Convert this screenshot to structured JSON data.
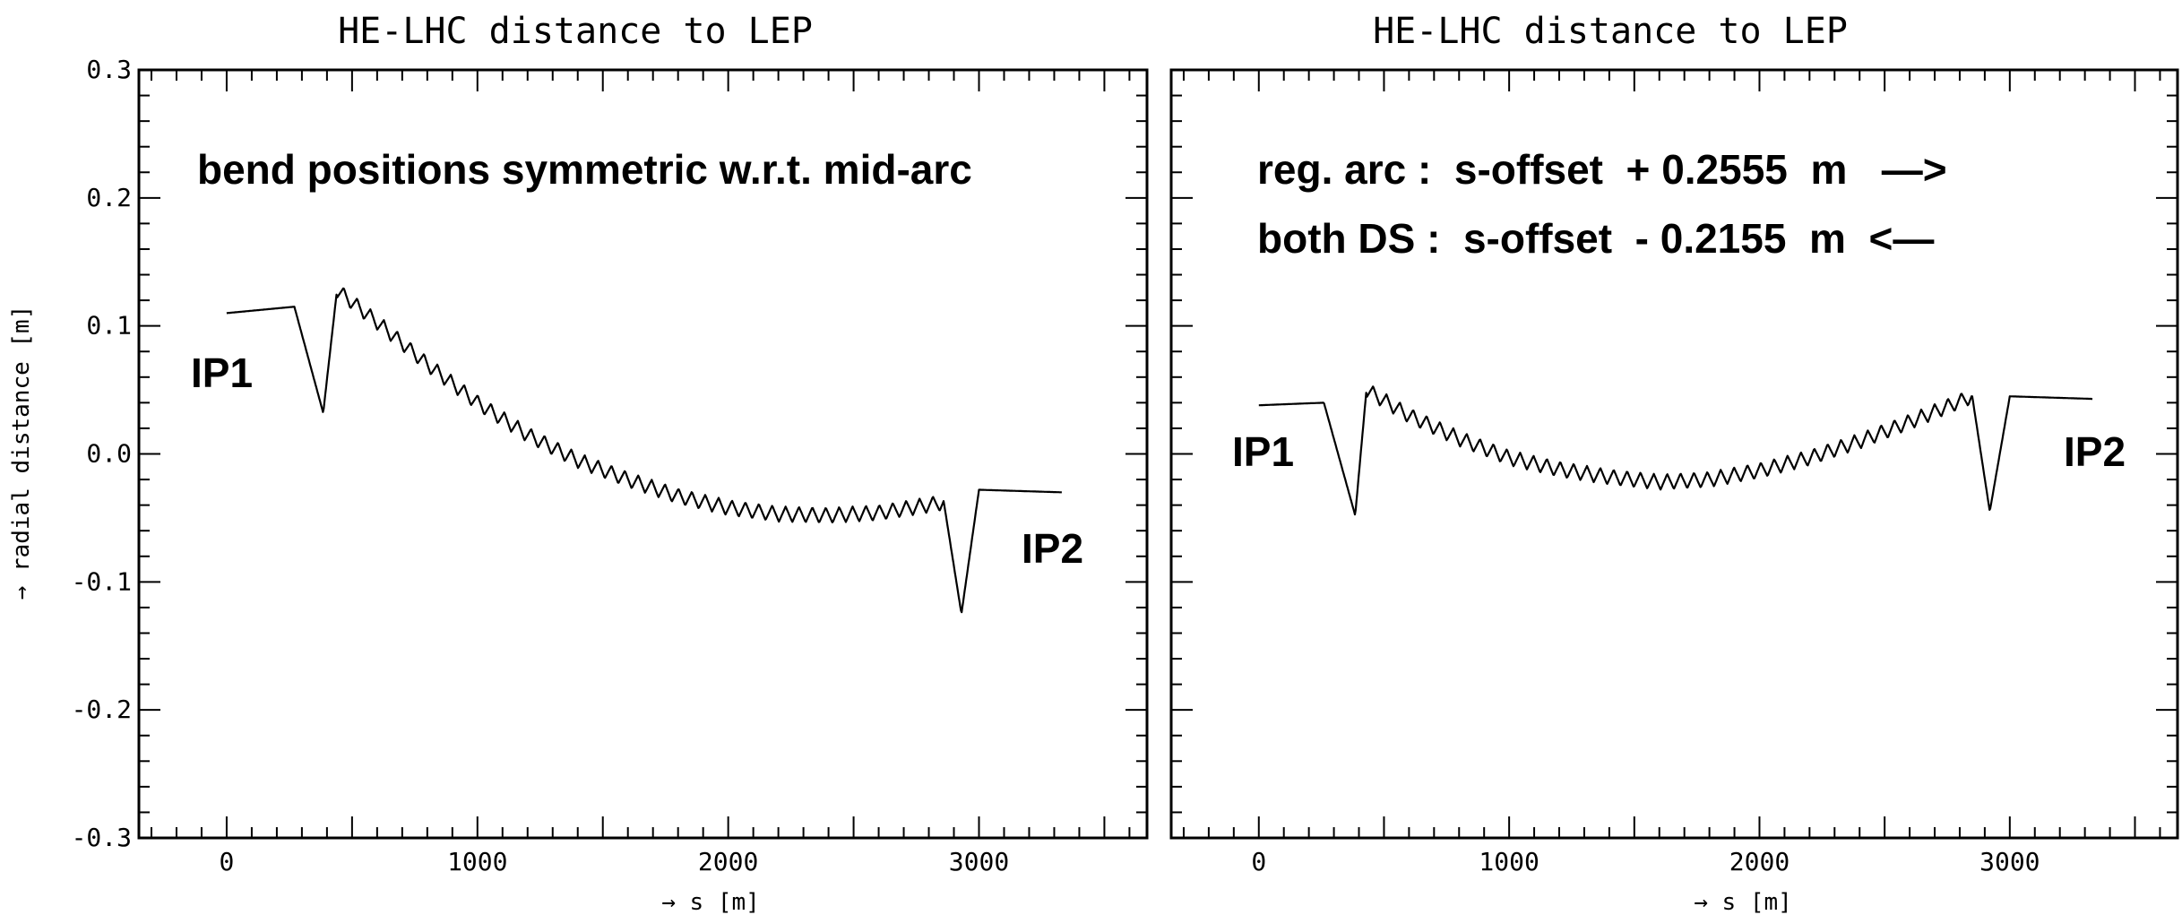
{
  "chart_data": [
    {
      "type": "line",
      "title": "HE-LHC distance to LEP",
      "xlabel": "→ s [m]",
      "ylabel": "→ radial distance [m]",
      "xlim": [
        -350,
        3670
      ],
      "ylim": [
        -0.3,
        0.3
      ],
      "xticks": [
        "0",
        "1000",
        "2000",
        "3000"
      ],
      "yticks": [
        "0.3",
        "0.2",
        "0.1",
        "0.0",
        "-0.1",
        "-0.2",
        "-0.3"
      ],
      "grid": false,
      "annotations": [
        "bend positions symmetric w.r.t. mid-arc"
      ],
      "ip_labels": [
        "IP1",
        "IP2"
      ],
      "series": [
        {
          "x": [
            0,
            270,
            385,
            440,
            600,
            800,
            1000,
            1200,
            1400,
            1600,
            1800,
            2000,
            2200,
            2400,
            2600,
            2860,
            2930,
            3000,
            3330
          ],
          "y": [
            0.11,
            0.115,
            0.032,
            0.128,
            0.103,
            0.07,
            0.04,
            0.015,
            -0.005,
            -0.02,
            -0.033,
            -0.042,
            -0.047,
            -0.048,
            -0.046,
            -0.038,
            -0.125,
            -0.028,
            -0.03
          ]
        }
      ]
    },
    {
      "type": "line",
      "title": "HE-LHC distance to LEP",
      "xlabel": "→ s [m]",
      "xlim": [
        -350,
        3670
      ],
      "ylim": [
        -0.3,
        0.3
      ],
      "xticks": [
        "0",
        "1000",
        "2000",
        "3000"
      ],
      "grid": false,
      "annotations": [
        "reg. arc :  s-offset  + 0.2555  m   —>",
        "both DS :  s-offset  - 0.2155  m  <—"
      ],
      "ip_labels": [
        "IP1",
        "IP2"
      ],
      "series": [
        {
          "x": [
            0,
            260,
            385,
            430,
            600,
            800,
            1000,
            1200,
            1400,
            1600,
            1800,
            2000,
            2200,
            2400,
            2600,
            2850,
            2920,
            3000,
            3330
          ],
          "y": [
            0.038,
            0.04,
            -0.048,
            0.05,
            0.03,
            0.012,
            -0.003,
            -0.012,
            -0.018,
            -0.022,
            -0.02,
            -0.013,
            -0.003,
            0.01,
            0.025,
            0.045,
            -0.045,
            0.045,
            0.043
          ]
        }
      ]
    }
  ]
}
